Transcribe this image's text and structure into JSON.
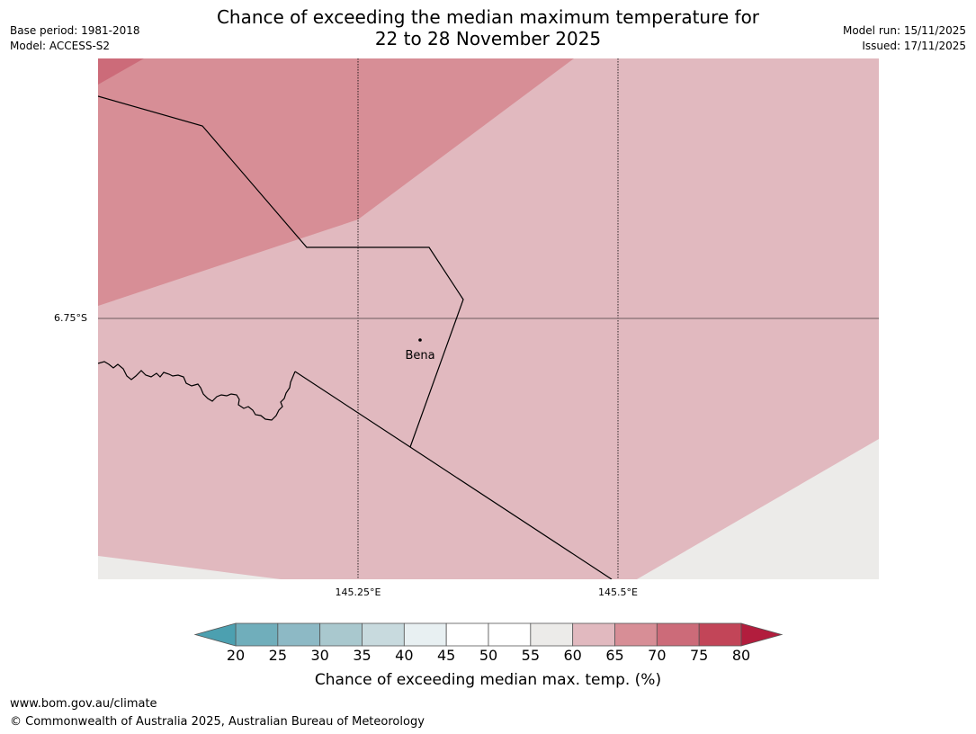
{
  "header": {
    "title_line1": "Chance of exceeding the median maximum temperature for",
    "title_line2": "22 to 28 November 2025",
    "base_period": "Base period: 1981-2018",
    "model": "Model: ACCESS-S2",
    "model_run": "Model run: 15/11/2025",
    "issued": "Issued: 17/11/2025"
  },
  "map": {
    "lat_label": "6.75°S",
    "lon_labels": [
      "145.25°E",
      "145.5°E"
    ],
    "place_label": "Bena",
    "region_colors": {
      "p70_75": "#cc6b79",
      "p65_70": "#d78e96",
      "p60_65": "#e1b9bf",
      "p55_60": "#ecebe9"
    }
  },
  "colorbar": {
    "ticks": [
      "20",
      "25",
      "30",
      "35",
      "40",
      "45",
      "50",
      "55",
      "60",
      "65",
      "70",
      "75",
      "80"
    ],
    "colors": [
      "#70aebb",
      "#8db9c5",
      "#a9c8ce",
      "#c8dade",
      "#e8f0f2",
      "#ffffff",
      "#ffffff",
      "#ecebe9",
      "#e1b9bf",
      "#d78e96",
      "#cc6b79",
      "#c24558"
    ],
    "under_color": "#4ca0b0",
    "over_color": "#b21d3d",
    "label": "Chance of exceeding median max. temp. (%)"
  },
  "footer": {
    "url": "www.bom.gov.au/climate",
    "copyright": "© Commonwealth of Australia 2025, Australian Bureau of Meteorology"
  }
}
